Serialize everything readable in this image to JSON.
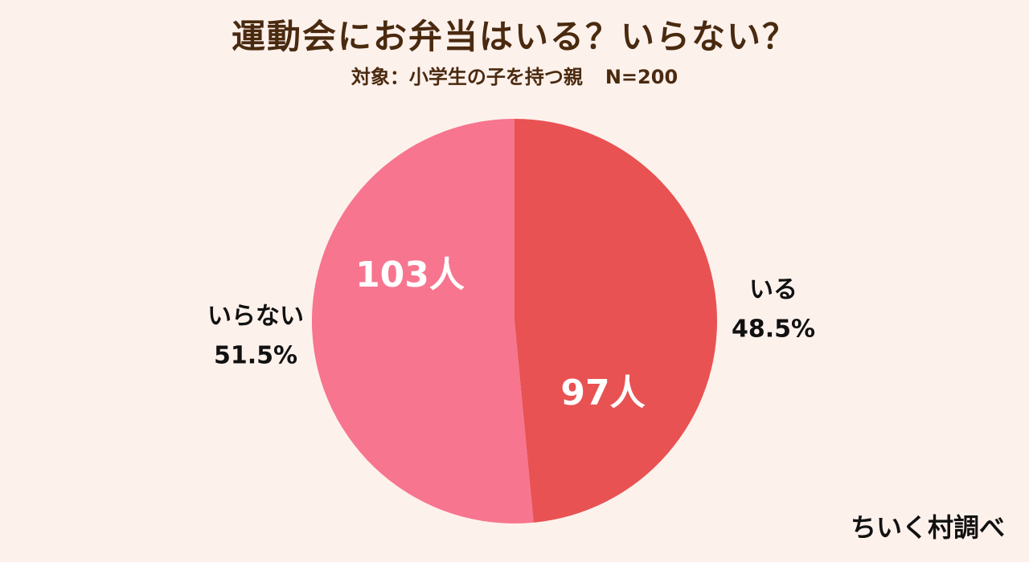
{
  "chart_data": {
    "type": "pie",
    "title": "運動会にお弁当はいる？いらない？",
    "subtitle": "対象：小学生の子を持つ親",
    "sample_size": "N=200",
    "slices": [
      {
        "label": "いる",
        "count": 97,
        "count_label": "97人",
        "percent": 48.5,
        "percent_label": "48.5%",
        "color": "#e85252"
      },
      {
        "label": "いらない",
        "count": 103,
        "count_label": "103人",
        "percent": 51.5,
        "percent_label": "51.5%",
        "color": "#f7758e"
      }
    ],
    "legend": "none"
  },
  "colors": {
    "background": "#fdf1ec",
    "title": "#4a2a0f",
    "inside_label": "#ffffff",
    "outside_label": "#111111"
  },
  "credit": "ちいく村調べ"
}
